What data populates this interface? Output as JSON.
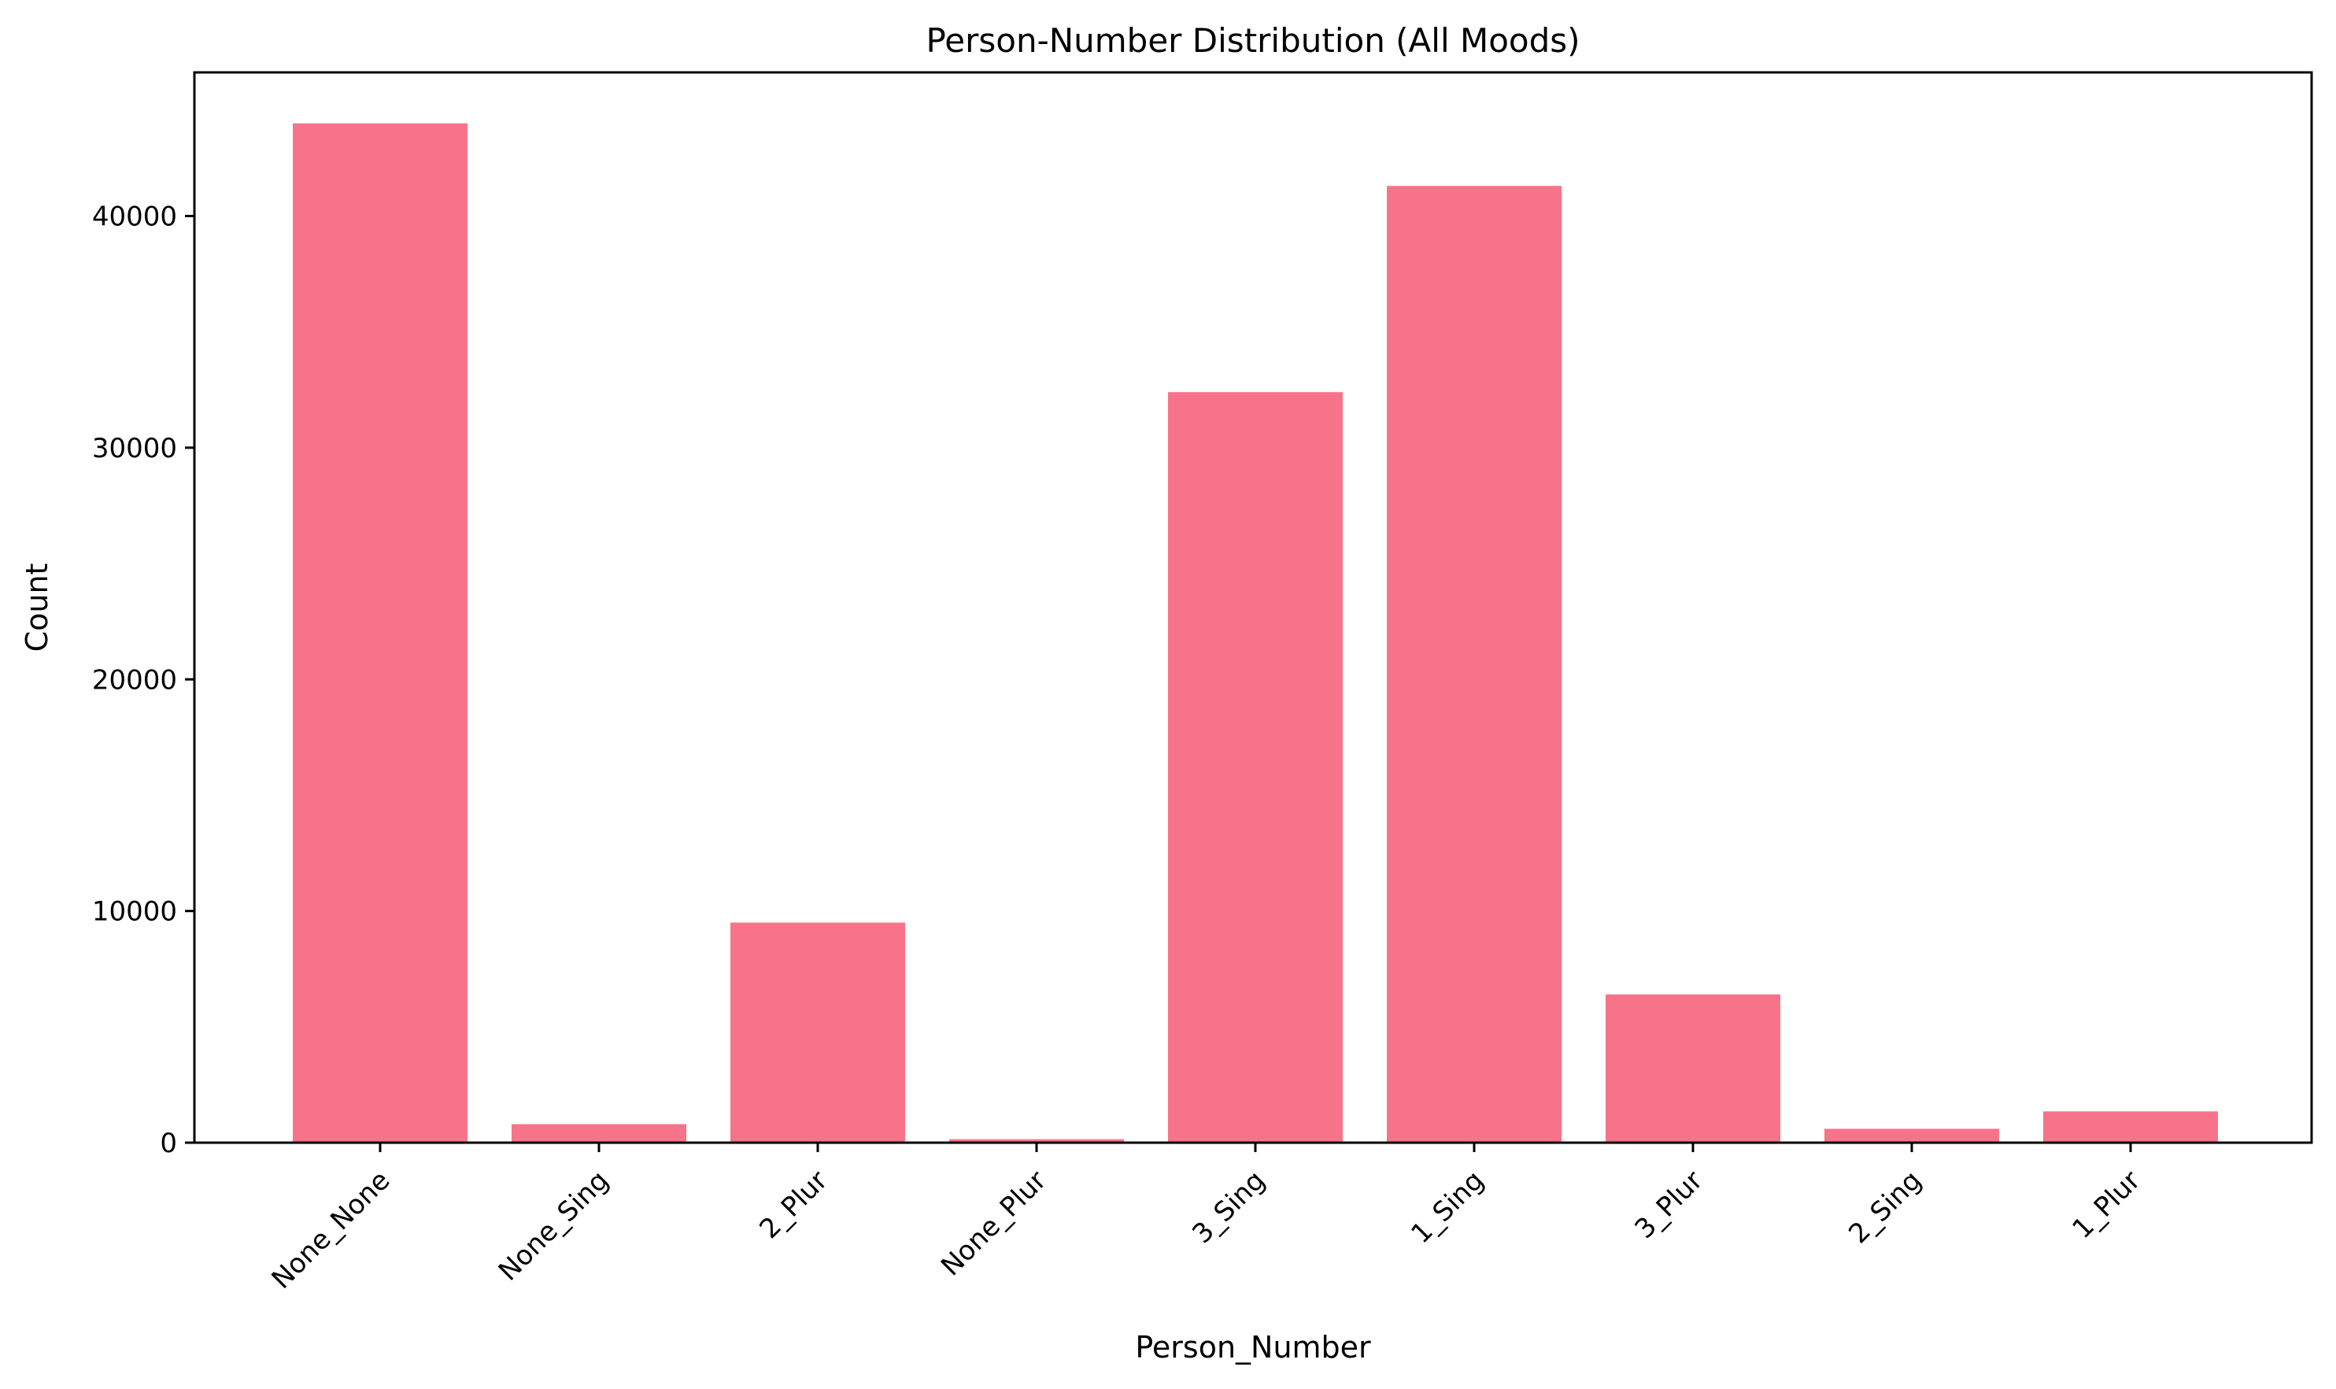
{
  "chart_data": {
    "type": "bar",
    "title": "Person-Number Distribution (All Moods)",
    "xlabel": "Person_Number",
    "ylabel": "Count",
    "categories": [
      "None_None",
      "None_Sing",
      "2_Plur",
      "None_Plur",
      "3_Sing",
      "1_Sing",
      "3_Plur",
      "2_Sing",
      "1_Plur"
    ],
    "values": [
      44000,
      800,
      9500,
      150,
      32400,
      41300,
      6400,
      600,
      1350
    ],
    "ylim": [
      0,
      46200
    ],
    "yticks": [
      0,
      10000,
      20000,
      30000,
      40000
    ],
    "grid": false,
    "bar_color": "#f7738a"
  }
}
